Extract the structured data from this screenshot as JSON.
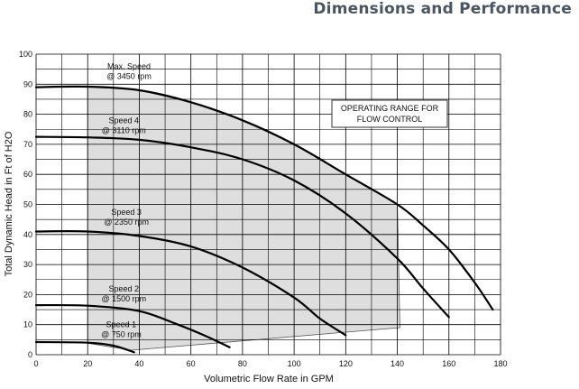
{
  "header": {
    "title": "Dimensions and Performance"
  },
  "chart_data": {
    "type": "line",
    "title": "",
    "xlabel": "Volumetric Flow Rate in GPM",
    "ylabel": "Total Dynamic Head in Ft of H2O",
    "xlim": [
      0,
      180
    ],
    "ylim": [
      0,
      100
    ],
    "x_ticks": [
      0,
      20,
      40,
      60,
      80,
      100,
      120,
      140,
      160,
      180
    ],
    "y_ticks": [
      0,
      10,
      20,
      30,
      40,
      50,
      60,
      70,
      80,
      90,
      100
    ],
    "grid": true,
    "series": [
      {
        "name_line1": "Max. Speed",
        "name_line2": "@ 3450 rpm",
        "points": [
          [
            0,
            89
          ],
          [
            20,
            89.2
          ],
          [
            40,
            88
          ],
          [
            60,
            84
          ],
          [
            80,
            78
          ],
          [
            100,
            70
          ],
          [
            120,
            60
          ],
          [
            140,
            50
          ],
          [
            150,
            43
          ],
          [
            160,
            35
          ],
          [
            170,
            24
          ],
          [
            177,
            15
          ]
        ]
      },
      {
        "name_line1": "Speed 4",
        "name_line2": "@ 3110 rpm",
        "points": [
          [
            0,
            72.5
          ],
          [
            20,
            72.3
          ],
          [
            40,
            71.5
          ],
          [
            60,
            69
          ],
          [
            80,
            65
          ],
          [
            100,
            58
          ],
          [
            120,
            47
          ],
          [
            140,
            32
          ],
          [
            150,
            22
          ],
          [
            160,
            12.5
          ]
        ]
      },
      {
        "name_line1": "Speed 3",
        "name_line2": "@ 2350 rpm",
        "points": [
          [
            0,
            41
          ],
          [
            20,
            41
          ],
          [
            40,
            39.5
          ],
          [
            60,
            36
          ],
          [
            80,
            29
          ],
          [
            100,
            19
          ],
          [
            110,
            12
          ],
          [
            120,
            6.5
          ]
        ]
      },
      {
        "name_line1": "Speed 2",
        "name_line2": "@ 1500 rpm",
        "points": [
          [
            0,
            16.5
          ],
          [
            20,
            16.3
          ],
          [
            40,
            14.5
          ],
          [
            55,
            10
          ],
          [
            65,
            6.5
          ],
          [
            75,
            2.5
          ]
        ]
      },
      {
        "name_line1": "Speed 1",
        "name_line2": "@ 750 rpm",
        "points": [
          [
            0,
            4.2
          ],
          [
            20,
            4
          ],
          [
            30,
            3
          ],
          [
            38,
            0.8
          ]
        ]
      }
    ],
    "operating_range": {
      "label_line1": "OPERATING RANGE FOR",
      "label_line2": "FLOW CONTROL",
      "polygon": [
        [
          20,
          89.2
        ],
        [
          40,
          88
        ],
        [
          60,
          84
        ],
        [
          80,
          78
        ],
        [
          100,
          70
        ],
        [
          120,
          60
        ],
        [
          140,
          50
        ],
        [
          141,
          9
        ],
        [
          37,
          1.5
        ],
        [
          20,
          3.8
        ]
      ]
    },
    "label_positions": [
      {
        "x": 36,
        "y": 95
      },
      {
        "x": 34,
        "y": 77
      },
      {
        "x": 35,
        "y": 46.5
      },
      {
        "x": 34,
        "y": 21
      },
      {
        "x": 33,
        "y": 9.2
      }
    ]
  }
}
